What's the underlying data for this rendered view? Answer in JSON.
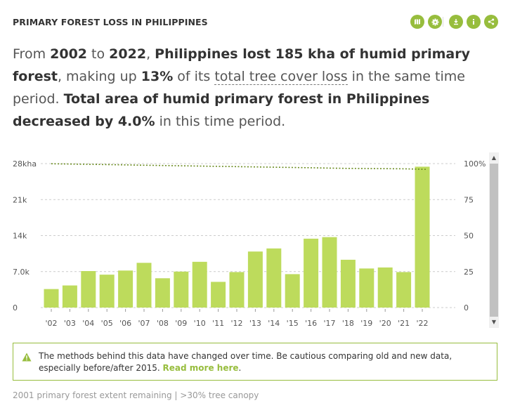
{
  "header": {
    "title": "PRIMARY FOREST LOSS IN PHILIPPINES"
  },
  "toolbar": {
    "icons": [
      "map-icon",
      "gear-icon",
      "download-icon",
      "info-icon",
      "share-icon"
    ],
    "color": "#97bd3d"
  },
  "summary": {
    "p1": "From ",
    "start_year": "2002",
    "p2": " to ",
    "end_year": "2022",
    "p3": ", ",
    "statement": "Philippines lost 185 kha of humid primary forest",
    "p4": ", making up ",
    "percent": "13%",
    "p5": " of its ",
    "link": "total tree cover loss",
    "p6": " in the same time period. ",
    "statement2": "Total area of humid primary forest in Philippines decreased by 4.0%",
    "p7": " in this time period."
  },
  "chart_data": {
    "type": "bar",
    "categories": [
      "'02",
      "'03",
      "'04",
      "'05",
      "'06",
      "'07",
      "'08",
      "'09",
      "'10",
      "'11",
      "'12",
      "'13",
      "'14",
      "'15",
      "'16",
      "'17",
      "'18",
      "'19",
      "'20",
      "'21",
      "'22"
    ],
    "values": [
      3.6,
      4.3,
      7.1,
      6.4,
      7.2,
      8.7,
      5.7,
      7.0,
      8.9,
      5.0,
      6.9,
      10.9,
      11.5,
      6.5,
      13.4,
      13.7,
      9.3,
      7.6,
      7.8,
      6.9,
      27.4
    ],
    "y_unit": "kha",
    "ylim": [
      0,
      28
    ],
    "yticks": [
      0,
      7,
      14,
      21,
      28
    ],
    "ytick_labels": [
      "0",
      "7.0k",
      "14k",
      "21k",
      "28kha"
    ],
    "y2ticks": [
      0,
      25,
      50,
      75,
      100
    ],
    "y2tick_labels": [
      "0",
      "25",
      "50",
      "75",
      "100%"
    ],
    "y2lim": [
      0,
      100
    ],
    "series": [
      {
        "type": "bar",
        "values": [
          3.6,
          4.3,
          7.1,
          6.4,
          7.2,
          8.7,
          5.7,
          7.0,
          8.9,
          5.0,
          6.9,
          10.9,
          11.5,
          6.5,
          13.4,
          13.7,
          9.3,
          7.6,
          7.8,
          6.9,
          27.4
        ],
        "color": "#bddb5c"
      },
      {
        "type": "line",
        "axis": "right",
        "style": "dotted",
        "values": [
          99.9,
          99.7,
          99.5,
          99.3,
          99.1,
          98.9,
          98.7,
          98.5,
          98.3,
          98.1,
          97.9,
          97.7,
          97.5,
          97.3,
          97.1,
          96.9,
          96.7,
          96.6,
          96.5,
          96.4,
          96.0
        ],
        "color": "#6b8c20"
      }
    ],
    "grid": true
  },
  "notice": {
    "text": "The methods behind this data have changed over time. Be cautious comparing old and new data, especially before/after 2015. ",
    "link": "Read more here",
    "after": "."
  },
  "footer": {
    "text": "2001 primary forest extent remaining | >30% tree canopy"
  }
}
